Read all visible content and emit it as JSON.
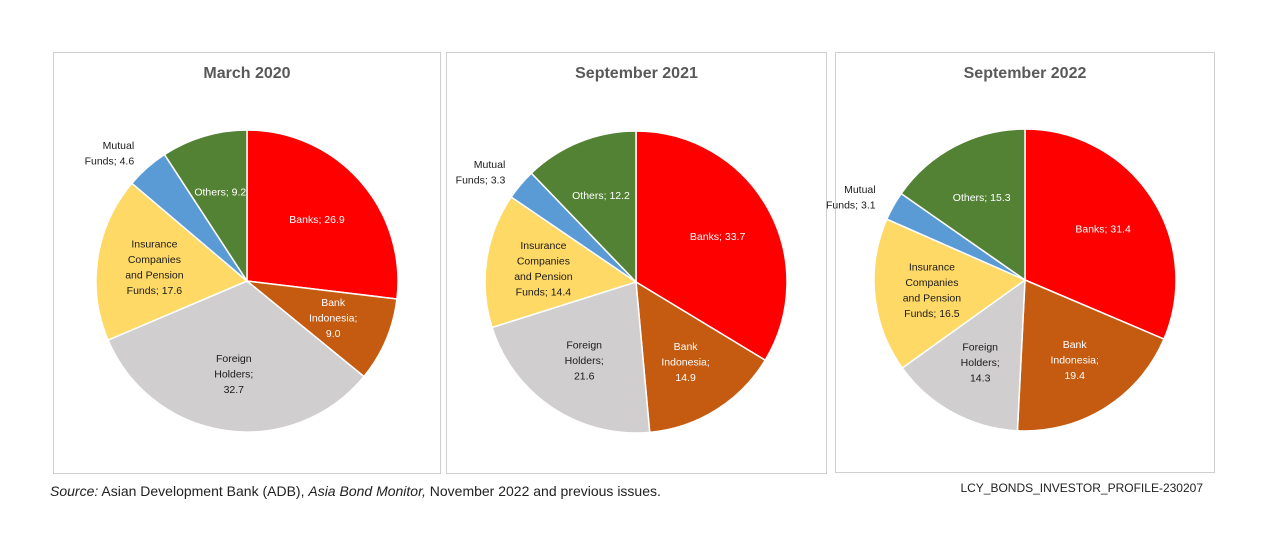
{
  "chart_data": [
    {
      "type": "pie",
      "title": "March 2020",
      "slices": [
        {
          "label": [
            "Banks; 26.9"
          ],
          "value": 26.9,
          "color": "#FF0000",
          "text": "light"
        },
        {
          "label": [
            "Bank",
            "Indonesia;",
            "9.0"
          ],
          "value": 9.0,
          "color": "#C55A11",
          "text": "light"
        },
        {
          "label": [
            "Foreign",
            "Holders;",
            "32.7"
          ],
          "value": 32.7,
          "color": "#D0CECE",
          "text": "dark"
        },
        {
          "label": [
            "Insurance",
            "Companies",
            "and Pension",
            "Funds; 17.6"
          ],
          "value": 17.6,
          "color": "#FFD966",
          "text": "dark"
        },
        {
          "label": [
            "Mutual",
            "Funds; 4.6"
          ],
          "value": 4.6,
          "color": "#5B9BD5",
          "text": "dark",
          "outside": true
        },
        {
          "label": [
            "Others; 9.2"
          ],
          "value": 9.2,
          "color": "#548235",
          "text": "light"
        }
      ]
    },
    {
      "type": "pie",
      "title": "September 2021",
      "slices": [
        {
          "label": [
            "Banks; 33.7"
          ],
          "value": 33.7,
          "color": "#FF0000",
          "text": "light"
        },
        {
          "label": [
            "Bank",
            "Indonesia;",
            "14.9"
          ],
          "value": 14.9,
          "color": "#C55A11",
          "text": "light"
        },
        {
          "label": [
            "Foreign",
            "Holders;",
            "21.6"
          ],
          "value": 21.6,
          "color": "#D0CECE",
          "text": "dark"
        },
        {
          "label": [
            "Insurance",
            "Companies",
            "and Pension",
            "Funds; 14.4"
          ],
          "value": 14.4,
          "color": "#FFD966",
          "text": "dark"
        },
        {
          "label": [
            "Mutual",
            "Funds; 3.3"
          ],
          "value": 3.3,
          "color": "#5B9BD5",
          "text": "dark",
          "outside": true
        },
        {
          "label": [
            "Others; 12.2"
          ],
          "value": 12.2,
          "color": "#548235",
          "text": "light"
        }
      ]
    },
    {
      "type": "pie",
      "title": "September 2022",
      "slices": [
        {
          "label": [
            "Banks; 31.4"
          ],
          "value": 31.4,
          "color": "#FF0000",
          "text": "light"
        },
        {
          "label": [
            "Bank",
            "Indonesia;",
            "19.4"
          ],
          "value": 19.4,
          "color": "#C55A11",
          "text": "light"
        },
        {
          "label": [
            "Foreign",
            "Holders;",
            "14.3"
          ],
          "value": 14.3,
          "color": "#D0CECE",
          "text": "dark"
        },
        {
          "label": [
            "Insurance",
            "Companies",
            "and Pension",
            "Funds; 16.5"
          ],
          "value": 16.5,
          "color": "#FFD966",
          "text": "dark"
        },
        {
          "label": [
            "Mutual",
            "Funds; 3.1"
          ],
          "value": 3.1,
          "color": "#5B9BD5",
          "text": "dark",
          "outside": true
        },
        {
          "label": [
            "Others; 15.3"
          ],
          "value": 15.3,
          "color": "#548235",
          "text": "light"
        }
      ]
    }
  ],
  "source": {
    "prefix": "Source:",
    "text1": " Asian Development Bank (ADB), ",
    "publication": "Asia Bond Monitor,",
    "text2": " November 2022 and previous issues."
  },
  "chart_code": "LCY_BONDS_INVESTOR_PROFILE-230207"
}
